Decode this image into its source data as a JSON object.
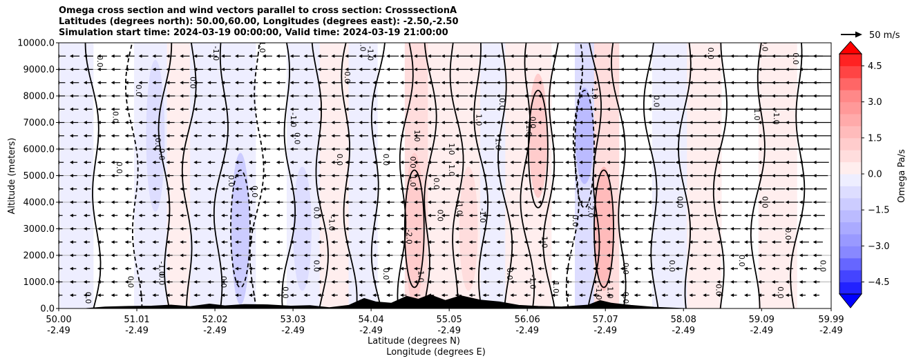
{
  "chart_data": {
    "type": "contourf",
    "title_lines": [
      "Omega cross section and wind vectors parallel to cross section: CrosssectionA",
      "Latitudes (degrees north): 50.00,60.00, Longitudes (degrees east): -2.50,-2.50",
      "Simulation start time: 2024-03-19 00:00:00, Valid time: 2024-03-19 21:00:00"
    ],
    "ylabel": "Altitude (meters)",
    "xlabel_lines": [
      "Latitude (degrees N)",
      "Longitude (degrees E)"
    ],
    "ylim": [
      0,
      10000
    ],
    "y_ticks": [
      {
        "value": 0,
        "label": "0.0"
      },
      {
        "value": 1000,
        "label": "1000.0"
      },
      {
        "value": 2000,
        "label": "2000.0"
      },
      {
        "value": 3000,
        "label": "3000.0"
      },
      {
        "value": 4000,
        "label": "4000.0"
      },
      {
        "value": 5000,
        "label": "5000.0"
      },
      {
        "value": 6000,
        "label": "6000.0"
      },
      {
        "value": 7000,
        "label": "7000.0"
      },
      {
        "value": 8000,
        "label": "8000.0"
      },
      {
        "value": 9000,
        "label": "9000.0"
      },
      {
        "value": 10000,
        "label": "10000.0"
      }
    ],
    "xlim": [
      50.0,
      59.99
    ],
    "x_ticks": [
      {
        "lat": 50.0,
        "lat_label": "50.00",
        "lon_label": "-2.49"
      },
      {
        "lat": 51.01,
        "lat_label": "51.01",
        "lon_label": "-2.49"
      },
      {
        "lat": 52.02,
        "lat_label": "52.02",
        "lon_label": "-2.49"
      },
      {
        "lat": 53.03,
        "lat_label": "53.03",
        "lon_label": "-2.49"
      },
      {
        "lat": 54.04,
        "lat_label": "54.04",
        "lon_label": "-2.49"
      },
      {
        "lat": 55.05,
        "lat_label": "55.05",
        "lon_label": "-2.49"
      },
      {
        "lat": 56.06,
        "lat_label": "56.06",
        "lon_label": "-2.49"
      },
      {
        "lat": 57.07,
        "lat_label": "57.07",
        "lon_label": "-2.49"
      },
      {
        "lat": 58.08,
        "lat_label": "58.08",
        "lon_label": "-2.49"
      },
      {
        "lat": 59.09,
        "lat_label": "59.09",
        "lon_label": "-2.49"
      },
      {
        "lat": 59.99,
        "lat_label": "59.99",
        "lon_label": "-2.49"
      }
    ],
    "grid": "horizontal",
    "colorbar": {
      "label": "Omega Pa/s",
      "range": [
        -5.0,
        5.0
      ],
      "ticks": [
        {
          "value": 4.5,
          "label": "4.5"
        },
        {
          "value": 3.0,
          "label": "3.0"
        },
        {
          "value": 1.5,
          "label": "1.5"
        },
        {
          "value": 0.0,
          "label": "0.0"
        },
        {
          "value": -1.5,
          "label": "−1.5"
        },
        {
          "value": -3.0,
          "label": "−3.0"
        },
        {
          "value": -4.5,
          "label": "−4.5"
        }
      ],
      "colors_high": [
        "#ffffff",
        "#ffeeee",
        "#ffdddd",
        "#ffcccc",
        "#ffbbbb",
        "#ffaaaa",
        "#ff9999",
        "#ff8888",
        "#ff6666",
        "#ff4444",
        "#ff2222",
        "#ff0000"
      ],
      "colors_low": [
        "#ffffff",
        "#eeeeff",
        "#ddddff",
        "#ccccff",
        "#bbbbff",
        "#aaaaff",
        "#9999ff",
        "#8888ff",
        "#6666ff",
        "#4444ff",
        "#2222ff",
        "#0000ff"
      ]
    },
    "quiver_key": {
      "label": "50 m/s",
      "speed": 50
    },
    "field_bands": [
      {
        "lat": 50.2,
        "omega": -0.6
      },
      {
        "lat": 50.7,
        "omega": 0.3
      },
      {
        "lat": 51.25,
        "omega": -0.9
      },
      {
        "lat": 51.55,
        "omega": 0.5
      },
      {
        "lat": 51.85,
        "omega": -0.5
      },
      {
        "lat": 52.35,
        "omega": -1.3
      },
      {
        "lat": 52.75,
        "omega": 0.3
      },
      {
        "lat": 53.15,
        "omega": -0.8
      },
      {
        "lat": 53.6,
        "omega": 0.5
      },
      {
        "lat": 53.9,
        "omega": -0.7
      },
      {
        "lat": 54.35,
        "omega": -0.4
      },
      {
        "lat": 54.6,
        "omega": 1.6
      },
      {
        "lat": 54.95,
        "omega": 0.6
      },
      {
        "lat": 55.3,
        "omega": 1.0
      },
      {
        "lat": 55.6,
        "omega": -0.5
      },
      {
        "lat": 55.95,
        "omega": 0.6
      },
      {
        "lat": 56.2,
        "omega": 1.3
      },
      {
        "lat": 56.55,
        "omega": -0.3
      },
      {
        "lat": 56.8,
        "omega": -2.0
      },
      {
        "lat": 57.05,
        "omega": 1.8
      },
      {
        "lat": 57.45,
        "omega": 0.2
      },
      {
        "lat": 57.9,
        "omega": -0.6
      },
      {
        "lat": 58.35,
        "omega": 0.5
      },
      {
        "lat": 58.8,
        "omega": -0.4
      },
      {
        "lat": 59.3,
        "omega": 0.7
      },
      {
        "lat": 59.8,
        "omega": -0.3
      }
    ],
    "contour_labels": [
      {
        "lat": 50.5,
        "alt": 9300,
        "text": "0.0"
      },
      {
        "lat": 51.0,
        "alt": 8200,
        "text": "0.0"
      },
      {
        "lat": 50.7,
        "alt": 7200,
        "text": "0.0"
      },
      {
        "lat": 50.75,
        "alt": 5300,
        "text": "0.0"
      },
      {
        "lat": 51.25,
        "alt": 6200,
        "text": "0.0"
      },
      {
        "lat": 51.3,
        "alt": 5800,
        "text": "0.0"
      },
      {
        "lat": 52.0,
        "alt": 9600,
        "text": "-1.0"
      },
      {
        "lat": 51.7,
        "alt": 8500,
        "text": "0.0"
      },
      {
        "lat": 52.2,
        "alt": 4800,
        "text": "0.0"
      },
      {
        "lat": 52.5,
        "alt": 4400,
        "text": "0.0"
      },
      {
        "lat": 52.6,
        "alt": 9900,
        "text": "-1.0"
      },
      {
        "lat": 53.0,
        "alt": 7100,
        "text": "-1.0"
      },
      {
        "lat": 53.05,
        "alt": 6400,
        "text": "0.0"
      },
      {
        "lat": 53.3,
        "alt": 3600,
        "text": "0.0"
      },
      {
        "lat": 53.9,
        "alt": 9900,
        "text": "1.0"
      },
      {
        "lat": 54.0,
        "alt": 9600,
        "text": "-1.0"
      },
      {
        "lat": 53.7,
        "alt": 8700,
        "text": "0.0"
      },
      {
        "lat": 53.6,
        "alt": 5600,
        "text": "0.0"
      },
      {
        "lat": 54.2,
        "alt": 5600,
        "text": "0.0"
      },
      {
        "lat": 54.55,
        "alt": 5500,
        "text": "0.0"
      },
      {
        "lat": 53.5,
        "alt": 3200,
        "text": "-1.0"
      },
      {
        "lat": 54.5,
        "alt": 2700,
        "text": "-2.0"
      },
      {
        "lat": 54.6,
        "alt": 6500,
        "text": "1.0"
      },
      {
        "lat": 54.55,
        "alt": 4800,
        "text": "1.0"
      },
      {
        "lat": 55.05,
        "alt": 6000,
        "text": "1.0"
      },
      {
        "lat": 54.9,
        "alt": 3500,
        "text": "0.0"
      },
      {
        "lat": 54.85,
        "alt": 4700,
        "text": "0.0"
      },
      {
        "lat": 55.05,
        "alt": 5200,
        "text": "1.0"
      },
      {
        "lat": 55.15,
        "alt": 3800,
        "text": "-1.0"
      },
      {
        "lat": 55.45,
        "alt": 3500,
        "text": "-1.0"
      },
      {
        "lat": 55.4,
        "alt": 7100,
        "text": "1.0"
      },
      {
        "lat": 55.65,
        "alt": 6200,
        "text": "1.0"
      },
      {
        "lat": 55.7,
        "alt": 7700,
        "text": "0.0"
      },
      {
        "lat": 56.1,
        "alt": 7000,
        "text": "0.0"
      },
      {
        "lat": 56.05,
        "alt": 6700,
        "text": "1.0"
      },
      {
        "lat": 56.9,
        "alt": 8100,
        "text": "1.0"
      },
      {
        "lat": 56.65,
        "alt": 3300,
        "text": "0.0"
      },
      {
        "lat": 56.85,
        "alt": 3700,
        "text": "-2.0"
      },
      {
        "lat": 56.25,
        "alt": 2500,
        "text": "1.0"
      },
      {
        "lat": 56.1,
        "alt": 1000,
        "text": "-1.0"
      },
      {
        "lat": 56.4,
        "alt": 800,
        "text": "1.0"
      },
      {
        "lat": 56.95,
        "alt": 600,
        "text": "-1.0"
      },
      {
        "lat": 57.1,
        "alt": 600,
        "text": "1.0"
      },
      {
        "lat": 57.3,
        "alt": 1500,
        "text": "0.0"
      },
      {
        "lat": 57.7,
        "alt": 7800,
        "text": "0.0"
      },
      {
        "lat": 58.0,
        "alt": 4000,
        "text": "0.0"
      },
      {
        "lat": 58.4,
        "alt": 9600,
        "text": "0.0"
      },
      {
        "lat": 59.0,
        "alt": 7300,
        "text": "1.0"
      },
      {
        "lat": 59.25,
        "alt": 7200,
        "text": "-1.0"
      },
      {
        "lat": 59.1,
        "alt": 9900,
        "text": "0.0"
      },
      {
        "lat": 59.5,
        "alt": 9400,
        "text": "0.0"
      },
      {
        "lat": 59.1,
        "alt": 4000,
        "text": "0.0"
      },
      {
        "lat": 59.4,
        "alt": 2800,
        "text": "0.0"
      },
      {
        "lat": 59.85,
        "alt": 1600,
        "text": "0.0"
      },
      {
        "lat": 59.3,
        "alt": 600,
        "text": "0.0"
      },
      {
        "lat": 58.5,
        "alt": 700,
        "text": "0.0"
      },
      {
        "lat": 52.1,
        "alt": 1000,
        "text": "0.0"
      },
      {
        "lat": 51.3,
        "alt": 1100,
        "text": "0.0"
      },
      {
        "lat": 50.9,
        "alt": 1000,
        "text": "0.0"
      },
      {
        "lat": 51.3,
        "alt": 1500,
        "text": "-1.0"
      },
      {
        "lat": 53.3,
        "alt": 1600,
        "text": "0.0"
      },
      {
        "lat": 54.2,
        "alt": 1300,
        "text": "0.0"
      },
      {
        "lat": 54.65,
        "alt": 1200,
        "text": "1.0"
      },
      {
        "lat": 55.8,
        "alt": 1300,
        "text": "0.0"
      },
      {
        "lat": 57.3,
        "alt": 400,
        "text": "0.0"
      },
      {
        "lat": 58.8,
        "alt": 1800,
        "text": "0.0"
      },
      {
        "lat": 57.9,
        "alt": 1600,
        "text": "0.0"
      },
      {
        "lat": 50.35,
        "alt": 400,
        "text": "0.0"
      },
      {
        "lat": 52.9,
        "alt": 600,
        "text": "0.0"
      }
    ],
    "terrain": [
      {
        "lat": 50.0,
        "alt": 0
      },
      {
        "lat": 50.35,
        "alt": 0
      },
      {
        "lat": 50.6,
        "alt": 60
      },
      {
        "lat": 50.9,
        "alt": 80
      },
      {
        "lat": 51.2,
        "alt": 90
      },
      {
        "lat": 51.45,
        "alt": 130
      },
      {
        "lat": 51.7,
        "alt": 70
      },
      {
        "lat": 51.95,
        "alt": 170
      },
      {
        "lat": 52.15,
        "alt": 100
      },
      {
        "lat": 52.4,
        "alt": 150
      },
      {
        "lat": 52.7,
        "alt": 140
      },
      {
        "lat": 53.0,
        "alt": 90
      },
      {
        "lat": 53.25,
        "alt": 110
      },
      {
        "lat": 53.5,
        "alt": 30
      },
      {
        "lat": 53.75,
        "alt": 120
      },
      {
        "lat": 53.95,
        "alt": 380
      },
      {
        "lat": 54.1,
        "alt": 250
      },
      {
        "lat": 54.3,
        "alt": 200
      },
      {
        "lat": 54.5,
        "alt": 460
      },
      {
        "lat": 54.65,
        "alt": 350
      },
      {
        "lat": 54.8,
        "alt": 520
      },
      {
        "lat": 55.0,
        "alt": 300
      },
      {
        "lat": 55.2,
        "alt": 480
      },
      {
        "lat": 55.45,
        "alt": 320
      },
      {
        "lat": 55.7,
        "alt": 250
      },
      {
        "lat": 55.95,
        "alt": 120
      },
      {
        "lat": 56.2,
        "alt": 80
      },
      {
        "lat": 56.5,
        "alt": 60
      },
      {
        "lat": 56.85,
        "alt": 130
      },
      {
        "lat": 57.0,
        "alt": 300
      },
      {
        "lat": 57.15,
        "alt": 200
      },
      {
        "lat": 57.4,
        "alt": 120
      },
      {
        "lat": 57.7,
        "alt": 50
      },
      {
        "lat": 58.1,
        "alt": 0
      },
      {
        "lat": 59.99,
        "alt": 0
      }
    ]
  }
}
